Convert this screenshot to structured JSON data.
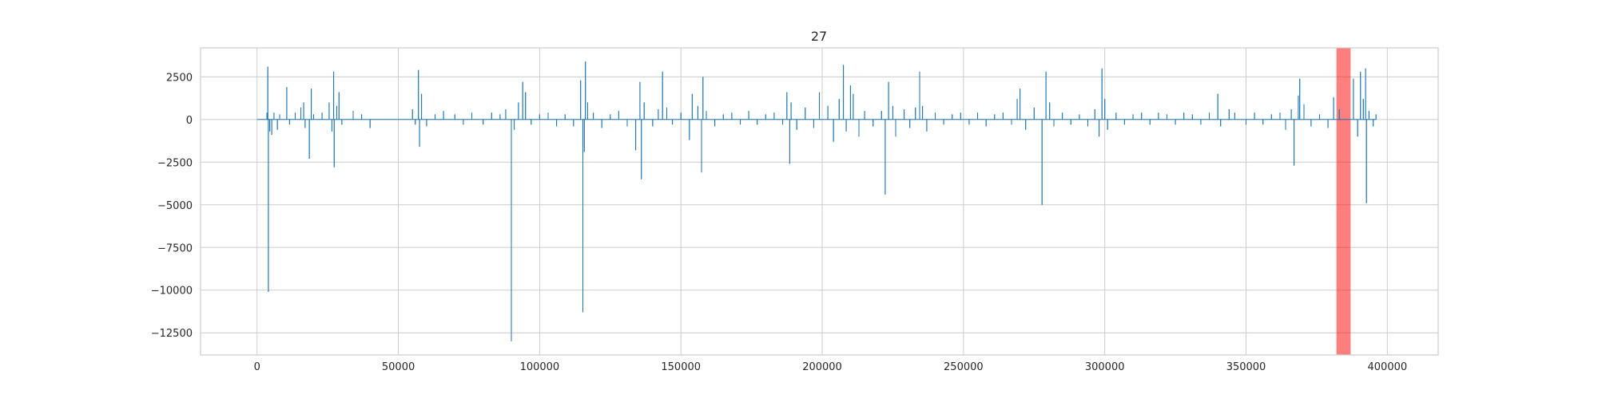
{
  "chart_data": {
    "type": "line",
    "title": "27",
    "xlabel": "",
    "ylabel": "",
    "xlim": [
      -20000,
      418000
    ],
    "ylim": [
      -13800,
      4200
    ],
    "x_ticks": [
      0,
      50000,
      100000,
      150000,
      200000,
      250000,
      300000,
      350000,
      400000
    ],
    "x_tick_labels": [
      "0",
      "50000",
      "100000",
      "150000",
      "200000",
      "250000",
      "300000",
      "350000",
      "400000"
    ],
    "y_ticks": [
      2500,
      0,
      -2500,
      -5000,
      -7500,
      -10000,
      -12500
    ],
    "y_tick_labels": [
      "2500",
      "0",
      "−2500",
      "−5000",
      "−7500",
      "−10000",
      "−12500"
    ],
    "grid": true,
    "series_color": "#1f77b4",
    "highlight_color": "#ff0000",
    "highlight_span": {
      "x_start": 382000,
      "x_end": 387000
    },
    "x_range": [
      0,
      396000
    ],
    "spikes": [
      [
        3800,
        3100
      ],
      [
        4000,
        -10100
      ],
      [
        3500,
        400
      ],
      [
        4500,
        -700
      ],
      [
        5200,
        -900
      ],
      [
        6000,
        400
      ],
      [
        7200,
        -600
      ],
      [
        8000,
        300
      ],
      [
        10500,
        1900
      ],
      [
        11500,
        -300
      ],
      [
        13500,
        400
      ],
      [
        15500,
        700
      ],
      [
        16500,
        1000
      ],
      [
        17000,
        -500
      ],
      [
        18500,
        -2300
      ],
      [
        19200,
        1800
      ],
      [
        20000,
        300
      ],
      [
        23000,
        400
      ],
      [
        25500,
        1000
      ],
      [
        26500,
        -700
      ],
      [
        27100,
        2800
      ],
      [
        27300,
        -2800
      ],
      [
        28200,
        800
      ],
      [
        29000,
        1600
      ],
      [
        30000,
        -300
      ],
      [
        34000,
        500
      ],
      [
        37000,
        300
      ],
      [
        40000,
        -500
      ],
      [
        55000,
        600
      ],
      [
        56000,
        -300
      ],
      [
        57100,
        2900
      ],
      [
        57500,
        -1600
      ],
      [
        58200,
        1500
      ],
      [
        60000,
        -400
      ],
      [
        63000,
        300
      ],
      [
        66000,
        500
      ],
      [
        70000,
        300
      ],
      [
        73000,
        -300
      ],
      [
        76000,
        400
      ],
      [
        80000,
        -300
      ],
      [
        83000,
        400
      ],
      [
        86000,
        300
      ],
      [
        88000,
        600
      ],
      [
        90000,
        -13000
      ],
      [
        91000,
        -600
      ],
      [
        92500,
        1000
      ],
      [
        94000,
        2200
      ],
      [
        95000,
        1600
      ],
      [
        97000,
        -300
      ],
      [
        100000,
        300
      ],
      [
        103000,
        400
      ],
      [
        106000,
        -400
      ],
      [
        109000,
        300
      ],
      [
        112000,
        -400
      ],
      [
        114500,
        2300
      ],
      [
        115300,
        -11300
      ],
      [
        115800,
        -1900
      ],
      [
        116200,
        3400
      ],
      [
        117000,
        1000
      ],
      [
        119000,
        400
      ],
      [
        122000,
        -500
      ],
      [
        125000,
        300
      ],
      [
        128000,
        500
      ],
      [
        131000,
        -400
      ],
      [
        134000,
        -1800
      ],
      [
        135500,
        2200
      ],
      [
        136000,
        -3500
      ],
      [
        137000,
        1000
      ],
      [
        140000,
        -400
      ],
      [
        142000,
        600
      ],
      [
        143500,
        2800
      ],
      [
        145000,
        700
      ],
      [
        147000,
        -300
      ],
      [
        150000,
        400
      ],
      [
        153000,
        -1200
      ],
      [
        154000,
        1500
      ],
      [
        156000,
        800
      ],
      [
        157300,
        -3100
      ],
      [
        157800,
        2500
      ],
      [
        159000,
        500
      ],
      [
        162000,
        -400
      ],
      [
        165000,
        300
      ],
      [
        168000,
        400
      ],
      [
        171000,
        -300
      ],
      [
        174000,
        500
      ],
      [
        177000,
        -300
      ],
      [
        180000,
        300
      ],
      [
        183000,
        400
      ],
      [
        186000,
        -300
      ],
      [
        187500,
        1600
      ],
      [
        188500,
        -2600
      ],
      [
        189000,
        1000
      ],
      [
        191000,
        -600
      ],
      [
        194000,
        700
      ],
      [
        197000,
        -500
      ],
      [
        199000,
        1600
      ],
      [
        202000,
        800
      ],
      [
        204000,
        -1300
      ],
      [
        206000,
        1200
      ],
      [
        207500,
        3200
      ],
      [
        208500,
        -700
      ],
      [
        210000,
        2000
      ],
      [
        211000,
        1500
      ],
      [
        213000,
        -1000
      ],
      [
        215000,
        500
      ],
      [
        218000,
        -400
      ],
      [
        221000,
        500
      ],
      [
        222300,
        -4400
      ],
      [
        223500,
        2200
      ],
      [
        225000,
        800
      ],
      [
        226000,
        -1000
      ],
      [
        229000,
        600
      ],
      [
        231000,
        -500
      ],
      [
        233000,
        700
      ],
      [
        234500,
        2800
      ],
      [
        235500,
        800
      ],
      [
        237000,
        -700
      ],
      [
        240000,
        400
      ],
      [
        243000,
        -300
      ],
      [
        246000,
        300
      ],
      [
        249000,
        400
      ],
      [
        252000,
        -300
      ],
      [
        255000,
        400
      ],
      [
        258000,
        -400
      ],
      [
        261000,
        300
      ],
      [
        264000,
        400
      ],
      [
        267000,
        -300
      ],
      [
        269000,
        1200
      ],
      [
        270000,
        1800
      ],
      [
        272000,
        -600
      ],
      [
        275000,
        700
      ],
      [
        277800,
        -5000
      ],
      [
        279200,
        2800
      ],
      [
        280500,
        1000
      ],
      [
        282000,
        -400
      ],
      [
        285000,
        400
      ],
      [
        288000,
        -300
      ],
      [
        291000,
        300
      ],
      [
        294000,
        -400
      ],
      [
        296500,
        600
      ],
      [
        298000,
        -1000
      ],
      [
        299000,
        3000
      ],
      [
        300000,
        1200
      ],
      [
        301000,
        -600
      ],
      [
        304000,
        400
      ],
      [
        307000,
        -300
      ],
      [
        310000,
        300
      ],
      [
        313000,
        400
      ],
      [
        316000,
        -300
      ],
      [
        319000,
        400
      ],
      [
        322000,
        300
      ],
      [
        325000,
        -300
      ],
      [
        328000,
        400
      ],
      [
        331000,
        300
      ],
      [
        334000,
        -300
      ],
      [
        337000,
        400
      ],
      [
        340000,
        1500
      ],
      [
        341000,
        -400
      ],
      [
        344000,
        600
      ],
      [
        346000,
        400
      ],
      [
        350000,
        -300
      ],
      [
        353000,
        400
      ],
      [
        356000,
        -300
      ],
      [
        359000,
        300
      ],
      [
        362000,
        400
      ],
      [
        364000,
        -600
      ],
      [
        366000,
        600
      ],
      [
        367000,
        -2700
      ],
      [
        368500,
        1400
      ],
      [
        369000,
        2400
      ],
      [
        370500,
        900
      ],
      [
        373000,
        -400
      ],
      [
        376000,
        300
      ],
      [
        379000,
        -500
      ],
      [
        381000,
        1300
      ],
      [
        383000,
        600
      ],
      [
        388000,
        2400
      ],
      [
        389500,
        -1000
      ],
      [
        390500,
        2800
      ],
      [
        391500,
        1200
      ],
      [
        392300,
        3000
      ],
      [
        392600,
        -4900
      ],
      [
        393500,
        500
      ],
      [
        395000,
        -400
      ],
      [
        396000,
        300
      ]
    ]
  }
}
